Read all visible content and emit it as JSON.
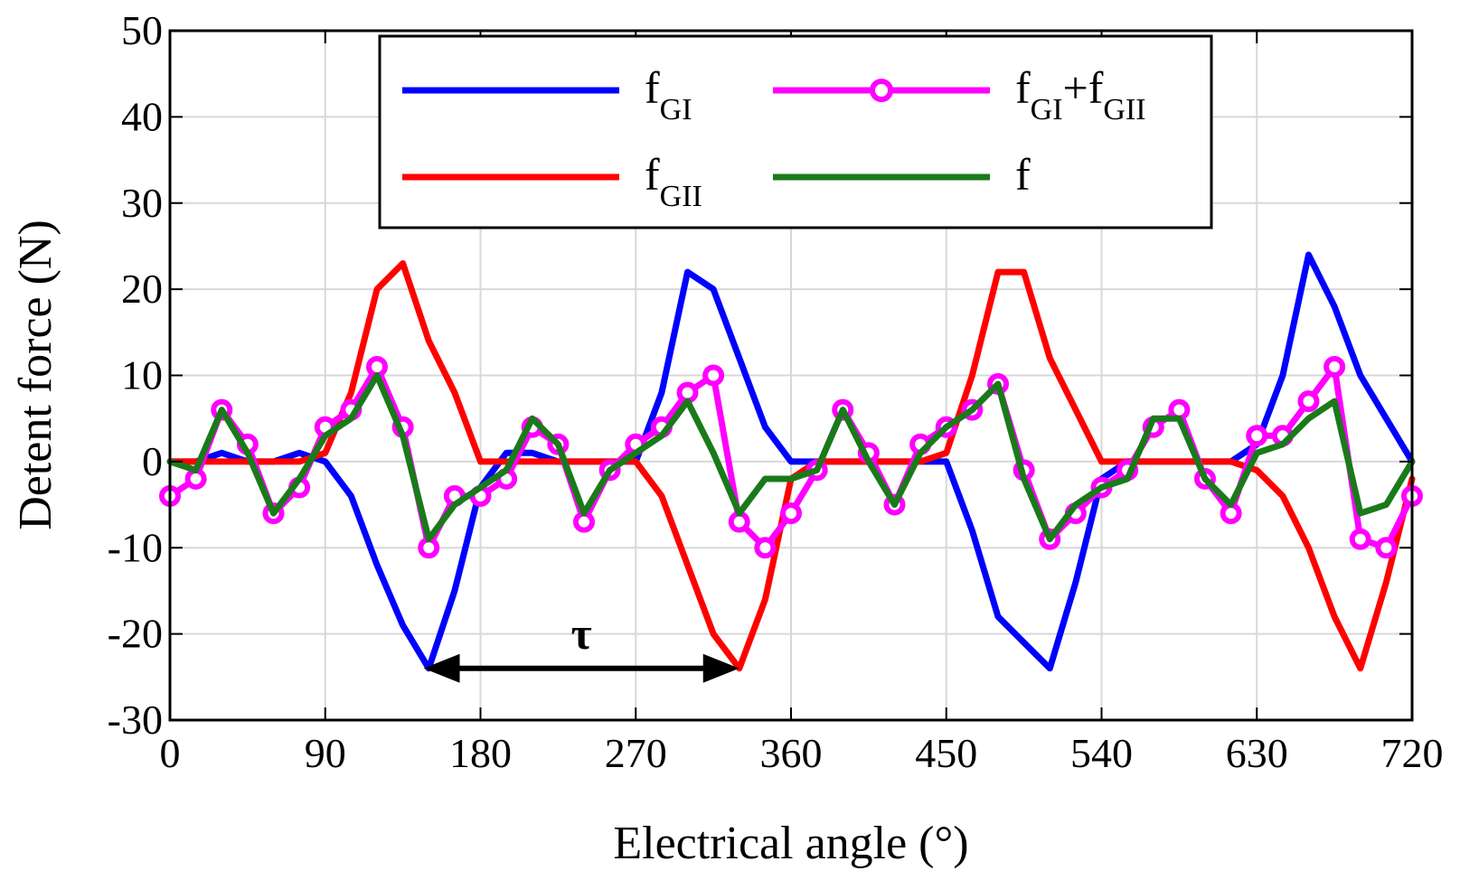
{
  "chart_data": {
    "type": "line",
    "xlabel": "Electrical angle (°)",
    "ylabel": "Detent force (N)",
    "xlim": [
      0,
      720
    ],
    "ylim": [
      -30,
      50
    ],
    "xticks": [
      0,
      90,
      180,
      270,
      360,
      450,
      540,
      630,
      720
    ],
    "yticks": [
      -30,
      -20,
      -10,
      0,
      10,
      20,
      30,
      40,
      50
    ],
    "grid": true,
    "legend_position": "top-center",
    "x": [
      0,
      15,
      30,
      45,
      60,
      75,
      90,
      105,
      120,
      135,
      150,
      165,
      180,
      195,
      210,
      225,
      240,
      255,
      270,
      285,
      300,
      315,
      330,
      345,
      360,
      375,
      390,
      405,
      420,
      435,
      450,
      465,
      480,
      495,
      510,
      525,
      540,
      555,
      570,
      585,
      600,
      615,
      630,
      645,
      660,
      675,
      690,
      705,
      720
    ],
    "series": [
      {
        "name": "fGI",
        "legend_main": "f",
        "legend_sub": "GI",
        "legend_plus": "",
        "legend_main2": "",
        "legend_sub2": "",
        "color": "#0000ff",
        "marker": "none",
        "values": [
          0,
          0,
          1,
          0,
          0,
          1,
          0,
          -4,
          -12,
          -19,
          -24,
          -15,
          -3,
          1,
          1,
          0,
          0,
          0,
          0,
          8,
          22,
          20,
          12,
          4,
          0,
          0,
          0,
          0,
          0,
          0,
          0,
          -8,
          -18,
          -21,
          -24,
          -14,
          -2,
          0,
          0,
          0,
          0,
          0,
          2,
          10,
          24,
          18,
          10,
          5,
          0
        ]
      },
      {
        "name": "fGII",
        "legend_main": "f",
        "legend_sub": "GII",
        "legend_plus": "",
        "legend_main2": "",
        "legend_sub2": "",
        "color": "#ff0000",
        "marker": "none",
        "values": [
          0,
          0,
          0,
          0,
          0,
          0,
          1,
          8,
          20,
          23,
          14,
          8,
          0,
          0,
          0,
          0,
          0,
          0,
          0,
          -4,
          -12,
          -20,
          -24,
          -16,
          -2,
          0,
          0,
          0,
          0,
          0,
          1,
          10,
          22,
          22,
          12,
          6,
          0,
          0,
          0,
          0,
          0,
          0,
          -1,
          -4,
          -10,
          -18,
          -24,
          -14,
          -2
        ]
      },
      {
        "name": "fGI+fGII",
        "legend_main": "f",
        "legend_sub": "GI",
        "legend_plus": "+",
        "legend_main2": "f",
        "legend_sub2": "GII",
        "color": "#ff00ff",
        "marker": "circle",
        "values": [
          -4,
          -2,
          6,
          2,
          -6,
          -3,
          4,
          6,
          11,
          4,
          -10,
          -4,
          -4,
          -2,
          4,
          2,
          -7,
          -1,
          2,
          4,
          8,
          10,
          -7,
          -10,
          -6,
          -1,
          6,
          1,
          -5,
          2,
          4,
          6,
          9,
          -1,
          -9,
          -6,
          -3,
          -1,
          4,
          6,
          -2,
          -6,
          3,
          3,
          7,
          11,
          -9,
          -10,
          -4
        ]
      },
      {
        "name": "f",
        "legend_main": "f",
        "legend_sub": "",
        "legend_plus": "",
        "legend_main2": "",
        "legend_sub2": "",
        "color": "#1a7a1a",
        "marker": "none",
        "values": [
          0,
          -1,
          6,
          1,
          -6,
          -2,
          3,
          5,
          10,
          3,
          -9,
          -5,
          -3,
          -1,
          5,
          2,
          -6,
          -1,
          1,
          3,
          7,
          1,
          -6,
          -2,
          -2,
          -1,
          6,
          0,
          -5,
          1,
          4,
          6,
          9,
          -2,
          -9,
          -5,
          -3,
          -2,
          5,
          5,
          -2,
          -5,
          1,
          2,
          5,
          7,
          -6,
          -5,
          0
        ]
      }
    ],
    "annotations": [
      {
        "text": "τ",
        "x_start": 147,
        "x_end": 330,
        "y": -24,
        "type": "double-arrow"
      }
    ]
  }
}
